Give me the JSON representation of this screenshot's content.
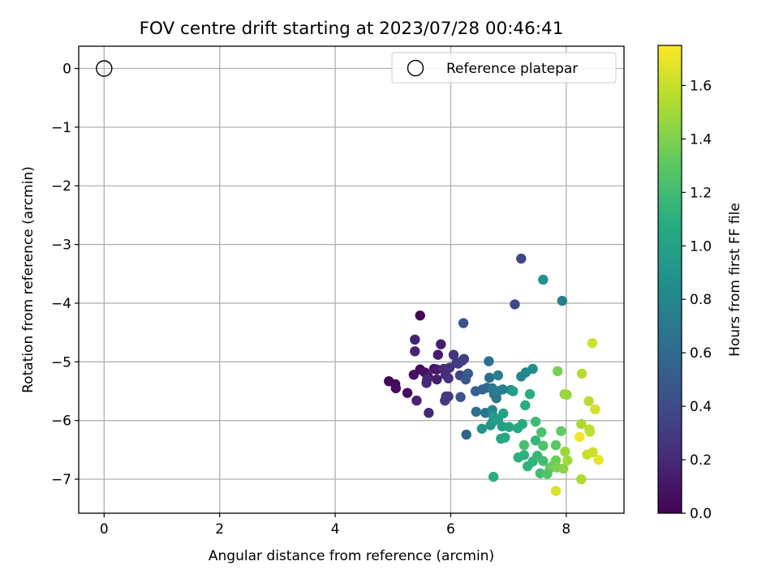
{
  "chart_data": {
    "type": "scatter",
    "title": "FOV centre drift starting at 2023/07/28 00:46:41",
    "xlabel": "Angular distance from reference (arcmin)",
    "ylabel": "Rotation from reference (arcmin)",
    "xlim": [
      -0.44,
      9.0
    ],
    "ylim": [
      -7.58,
      0.38
    ],
    "xticks": [
      "0",
      "2",
      "4",
      "6",
      "8"
    ],
    "xtick_values": [
      0,
      2,
      4,
      6,
      8
    ],
    "yticks": [
      "0",
      "−1",
      "−2",
      "−3",
      "−4",
      "−5",
      "−6",
      "−7"
    ],
    "ytick_values": [
      0,
      -1,
      -2,
      -3,
      -4,
      -5,
      -6,
      -7
    ],
    "grid": true,
    "legend": {
      "placement": "upper-right",
      "entries": [
        "Reference platepar"
      ]
    },
    "reference_point": {
      "x": 0,
      "y": 0
    },
    "colorbar": {
      "label": "Hours from first FF file",
      "colormap": "viridis",
      "range": [
        0.0,
        1.75
      ],
      "ticks": [
        "0.0",
        "0.2",
        "0.4",
        "0.6",
        "0.8",
        "1.0",
        "1.2",
        "1.4",
        "1.6"
      ],
      "tick_values": [
        0.0,
        0.2,
        0.4,
        0.6,
        0.8,
        1.0,
        1.2,
        1.4,
        1.6
      ]
    },
    "points": [
      [
        5.47,
        -4.21,
        0.02
      ],
      [
        4.93,
        -5.33,
        0.03
      ],
      [
        5.04,
        -5.38,
        0.04
      ],
      [
        5.05,
        -5.45,
        0.05
      ],
      [
        5.25,
        -5.53,
        0.06
      ],
      [
        5.36,
        -5.22,
        0.08
      ],
      [
        5.47,
        -5.13,
        0.07
      ],
      [
        5.55,
        -5.18,
        0.09
      ],
      [
        5.61,
        -5.26,
        0.1
      ],
      [
        5.71,
        -5.12,
        0.11
      ],
      [
        5.76,
        -5.13,
        0.12
      ],
      [
        5.78,
        -4.88,
        0.13
      ],
      [
        5.83,
        -4.7,
        0.14
      ],
      [
        5.76,
        -5.3,
        0.15
      ],
      [
        5.38,
        -4.62,
        0.16
      ],
      [
        5.38,
        -4.82,
        0.17
      ],
      [
        5.41,
        -5.66,
        0.18
      ],
      [
        5.58,
        -5.36,
        0.19
      ],
      [
        5.59,
        -5.3,
        0.2
      ],
      [
        5.62,
        -5.87,
        0.21
      ],
      [
        5.88,
        -5.12,
        0.22
      ],
      [
        5.91,
        -5.22,
        0.23
      ],
      [
        5.98,
        -5.1,
        0.24
      ],
      [
        5.96,
        -5.28,
        0.25
      ],
      [
        6.05,
        -4.88,
        0.26
      ],
      [
        6.1,
        -5.02,
        0.27
      ],
      [
        5.92,
        -5.59,
        0.28
      ],
      [
        5.96,
        -5.59,
        0.29
      ],
      [
        5.9,
        -5.66,
        0.3
      ],
      [
        6.13,
        -5.03,
        0.31
      ],
      [
        6.2,
        -4.98,
        0.32
      ],
      [
        6.23,
        -4.95,
        0.33
      ],
      [
        6.16,
        -5.23,
        0.35
      ],
      [
        7.22,
        -3.24,
        0.37
      ],
      [
        7.11,
        -4.02,
        0.39
      ],
      [
        6.22,
        -4.34,
        0.45
      ],
      [
        6.17,
        -5.6,
        0.46
      ],
      [
        6.26,
        -5.3,
        0.48
      ],
      [
        6.3,
        -5.2,
        0.5
      ],
      [
        6.27,
        -6.24,
        0.55
      ],
      [
        6.43,
        -5.5,
        0.52
      ],
      [
        6.55,
        -5.47,
        0.57
      ],
      [
        6.63,
        -5.44,
        0.59
      ],
      [
        6.67,
        -5.27,
        0.61
      ],
      [
        6.66,
        -4.99,
        0.62
      ],
      [
        6.44,
        -5.85,
        0.64
      ],
      [
        6.6,
        -5.87,
        0.66
      ],
      [
        6.75,
        -5.55,
        0.68
      ],
      [
        6.79,
        -5.62,
        0.69
      ],
      [
        6.72,
        -5.45,
        0.7
      ],
      [
        6.82,
        -5.5,
        0.72
      ],
      [
        6.9,
        -5.47,
        0.73
      ],
      [
        6.82,
        -5.23,
        0.74
      ],
      [
        7.04,
        -5.48,
        0.78
      ],
      [
        7.22,
        -5.25,
        0.8
      ],
      [
        7.3,
        -5.18,
        0.82
      ],
      [
        7.42,
        -5.12,
        0.86
      ],
      [
        7.6,
        -3.6,
        0.88
      ],
      [
        7.93,
        -3.96,
        0.75
      ],
      [
        6.72,
        -5.82,
        0.81
      ],
      [
        6.54,
        -6.14,
        0.9
      ],
      [
        6.69,
        -6.08,
        0.92
      ],
      [
        6.73,
        -6.02,
        0.93
      ],
      [
        6.74,
        -5.93,
        0.95
      ],
      [
        6.82,
        -5.98,
        0.96
      ],
      [
        6.89,
        -6.1,
        0.98
      ],
      [
        6.91,
        -5.88,
        1.0
      ],
      [
        7.01,
        -6.11,
        1.02
      ],
      [
        7.08,
        -5.5,
        0.97
      ],
      [
        6.87,
        -6.31,
        1.03
      ],
      [
        6.94,
        -6.29,
        1.04
      ],
      [
        7.16,
        -6.13,
        1.05
      ],
      [
        7.24,
        -6.06,
        1.06
      ],
      [
        7.29,
        -5.74,
        1.08
      ],
      [
        7.37,
        -5.55,
        1.09
      ],
      [
        6.74,
        -6.96,
        1.1
      ],
      [
        7.17,
        -6.63,
        1.11
      ],
      [
        7.27,
        -6.59,
        1.12
      ],
      [
        7.33,
        -6.78,
        1.13
      ],
      [
        7.42,
        -6.7,
        1.14
      ],
      [
        7.47,
        -6.34,
        1.15
      ],
      [
        7.5,
        -6.6,
        1.16
      ],
      [
        7.47,
        -6.02,
        1.18
      ],
      [
        7.6,
        -6.69,
        1.2
      ],
      [
        7.55,
        -6.9,
        1.21
      ],
      [
        7.27,
        -6.42,
        1.22
      ],
      [
        7.57,
        -6.2,
        1.24
      ],
      [
        7.6,
        -6.43,
        1.25
      ],
      [
        7.67,
        -6.91,
        1.26
      ],
      [
        7.72,
        -6.81,
        1.28
      ],
      [
        7.82,
        -6.42,
        1.3
      ],
      [
        7.91,
        -6.18,
        1.32
      ],
      [
        7.76,
        -6.78,
        1.34
      ],
      [
        7.82,
        -6.68,
        1.35
      ],
      [
        7.85,
        -5.16,
        1.38
      ],
      [
        7.84,
        -6.8,
        1.4
      ],
      [
        7.95,
        -6.82,
        1.43
      ],
      [
        7.97,
        -5.55,
        1.45
      ],
      [
        8.01,
        -5.56,
        1.47
      ],
      [
        7.98,
        -6.53,
        1.48
      ],
      [
        8.02,
        -6.68,
        1.5
      ],
      [
        8.26,
        -6.06,
        1.52
      ],
      [
        8.26,
        -7.0,
        1.53
      ],
      [
        8.27,
        -5.2,
        1.55
      ],
      [
        8.39,
        -5.67,
        1.56
      ],
      [
        8.4,
        -6.15,
        1.57
      ],
      [
        8.41,
        -6.19,
        1.58
      ],
      [
        8.36,
        -6.58,
        1.6
      ],
      [
        8.46,
        -6.54,
        1.61
      ],
      [
        8.45,
        -4.68,
        1.62
      ],
      [
        8.5,
        -5.81,
        1.64
      ],
      [
        7.82,
        -7.2,
        1.65
      ],
      [
        8.23,
        -6.28,
        1.72
      ],
      [
        8.56,
        -6.67,
        1.7
      ]
    ]
  }
}
